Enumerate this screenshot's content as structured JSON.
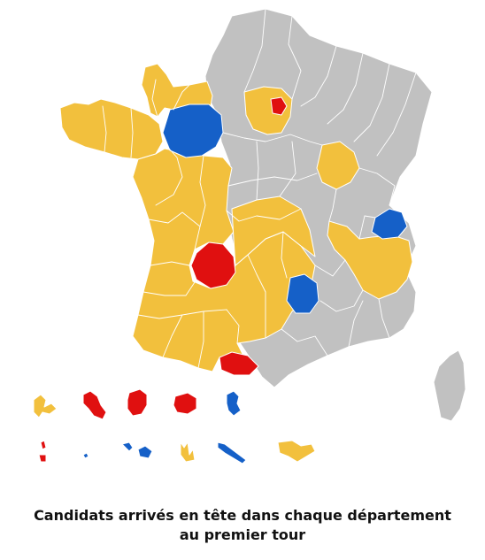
{
  "caption": {
    "line1": "Candidats arrivés en tête dans chaque département",
    "line2": "au premier tour"
  },
  "colors": {
    "yellow": "#f2c03d",
    "red": "#e01010",
    "blue": "#1560c8",
    "grey": "#c1c1c1"
  }
}
